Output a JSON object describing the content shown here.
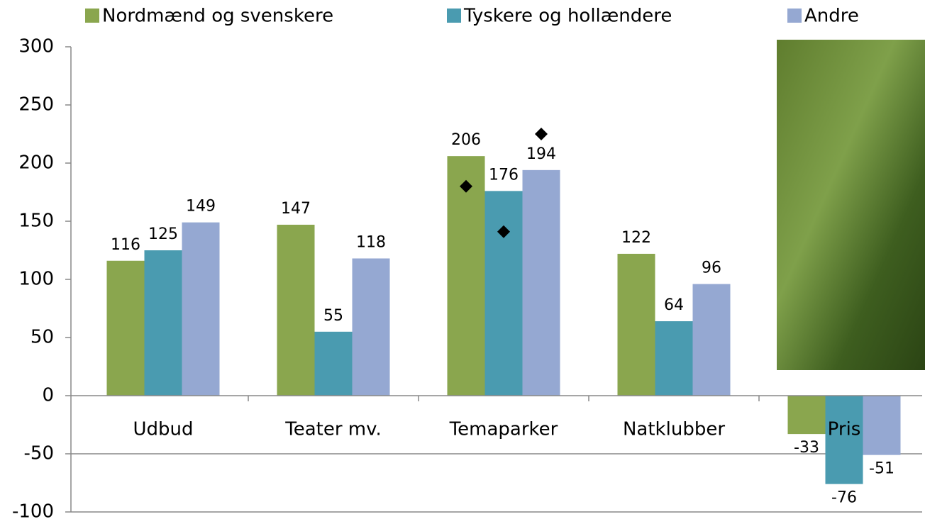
{
  "chart_data": {
    "type": "bar",
    "categories": [
      "Udbud",
      "Teater mv.",
      "Temaparker",
      "Natklubber",
      "Pris"
    ],
    "series": [
      {
        "name": "Nordmænd og svenskere",
        "color": "#8aa64e",
        "values": [
          116,
          147,
          206,
          122,
          -33
        ],
        "marker_values": [
          null,
          null,
          180,
          null,
          null
        ]
      },
      {
        "name": "Tyskere og hollændere",
        "color": "#4a9bb0",
        "values": [
          125,
          55,
          176,
          64,
          -76
        ],
        "marker_values": [
          null,
          null,
          141,
          null,
          null
        ]
      },
      {
        "name": "Andre",
        "color": "#95a8d2",
        "values": [
          149,
          118,
          194,
          96,
          -51
        ],
        "marker_values": [
          null,
          null,
          225,
          null,
          null
        ]
      }
    ],
    "marker_color": "#000000",
    "ylim": [
      -100,
      300
    ],
    "yticks": [
      -100,
      -50,
      0,
      50,
      100,
      150,
      200,
      250,
      300
    ],
    "grid": false,
    "legend": "top"
  }
}
